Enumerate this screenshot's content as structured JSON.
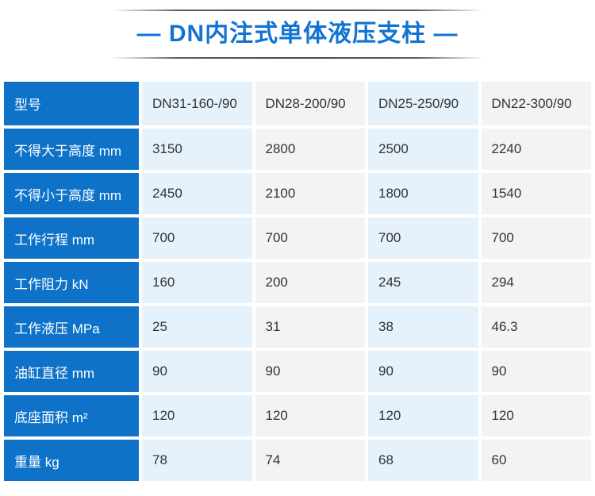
{
  "page": {
    "title": "— DN内注式单体液压支柱 —"
  },
  "table": {
    "row_header_label": "型号",
    "columns": [
      "DN31-160-/90",
      "DN28-200/90",
      "DN25-250/90",
      "DN22-300/90"
    ],
    "rows": [
      {
        "label": "不得大于高度 mm",
        "values": [
          "3150",
          "2800",
          "2500",
          "2240"
        ]
      },
      {
        "label": "不得小于高度 mm",
        "values": [
          "2450",
          "2100",
          "1800",
          "1540"
        ]
      },
      {
        "label": "工作行程 mm",
        "values": [
          "700",
          "700",
          "700",
          "700"
        ]
      },
      {
        "label": "工作阻力 kN",
        "values": [
          "160",
          "200",
          "245",
          "294"
        ]
      },
      {
        "label": "工作液压 MPa",
        "values": [
          "25",
          "31",
          "38",
          "46.3"
        ]
      },
      {
        "label": "油缸直径 mm",
        "values": [
          "90",
          "90",
          "90",
          "90"
        ]
      },
      {
        "label": "底座面积 m²",
        "values": [
          "120",
          "120",
          "120",
          "120"
        ]
      },
      {
        "label": "重量 kg",
        "values": [
          "78",
          "74",
          "68",
          "60"
        ]
      }
    ]
  },
  "colors": {
    "accent_blue": "#0d72c8",
    "title_blue": "#1173d4",
    "cell_light_blue": "#e5f1fb",
    "cell_light_gray": "#f3f3f3",
    "gutter_white": "#ffffff",
    "rule_gray": "#3f3f3f",
    "text_dark": "#333333"
  }
}
